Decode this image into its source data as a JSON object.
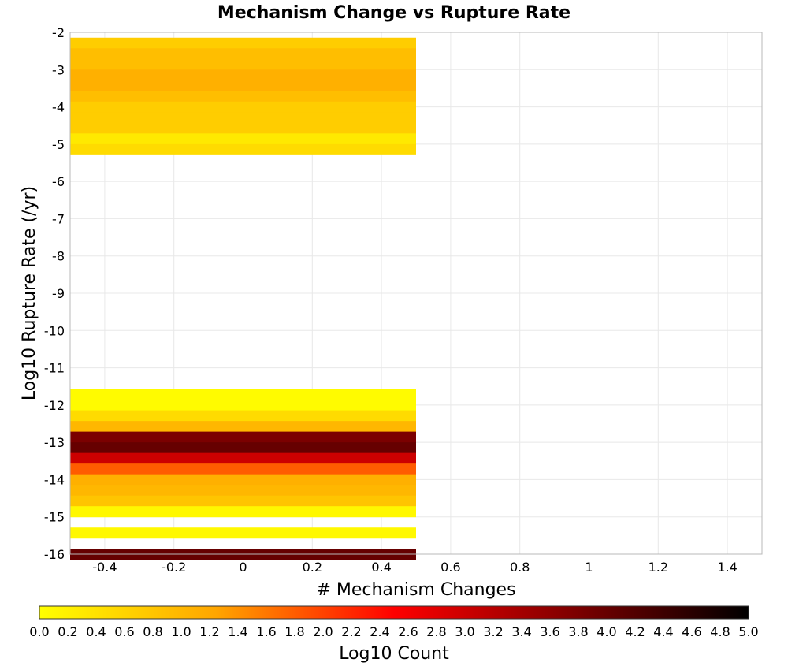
{
  "chart_data": {
    "type": "heatmap",
    "title": "Mechanism Change vs Rupture Rate",
    "xlabel": "# Mechanism Changes",
    "ylabel": "Log10 Rupture Rate (/yr)",
    "xlim": [
      -0.5,
      1.5
    ],
    "ylim": [
      -16,
      -2
    ],
    "x_ticks": [
      "-0.4",
      "-0.2",
      "0",
      "0.2",
      "0.4",
      "0.6",
      "0.8",
      "1",
      "1.2",
      "1.4"
    ],
    "y_ticks": [
      "-2",
      "-3",
      "-4",
      "-5",
      "-6",
      "-7",
      "-8",
      "-9",
      "-10",
      "-11",
      "-12",
      "-13",
      "-14",
      "-15",
      "-16"
    ],
    "grid": true,
    "cell_x_range": [
      -0.5,
      0.5
    ],
    "cell_height": 0.2857,
    "cells": [
      {
        "y_top": -2.143,
        "value": 0.7
      },
      {
        "y_top": -2.429,
        "value": 0.9
      },
      {
        "y_top": -2.714,
        "value": 0.9
      },
      {
        "y_top": -3.0,
        "value": 1.1
      },
      {
        "y_top": -3.286,
        "value": 1.1
      },
      {
        "y_top": -3.571,
        "value": 0.9
      },
      {
        "y_top": -3.857,
        "value": 0.7
      },
      {
        "y_top": -4.143,
        "value": 0.7
      },
      {
        "y_top": -4.429,
        "value": 0.7
      },
      {
        "y_top": -4.714,
        "value": 0.3
      },
      {
        "y_top": -5.0,
        "value": 0.5
      },
      {
        "y_top": -11.571,
        "value": 0.05
      },
      {
        "y_top": -11.857,
        "value": 0.05
      },
      {
        "y_top": -12.143,
        "value": 0.5
      },
      {
        "y_top": -12.429,
        "value": 1.0
      },
      {
        "y_top": -12.714,
        "value": 3.8
      },
      {
        "y_top": -13.0,
        "value": 4.0
      },
      {
        "y_top": -13.286,
        "value": 3.0
      },
      {
        "y_top": -13.571,
        "value": 1.8
      },
      {
        "y_top": -13.857,
        "value": 1.1
      },
      {
        "y_top": -14.143,
        "value": 1.0
      },
      {
        "y_top": -14.429,
        "value": 0.8
      },
      {
        "y_top": -14.714,
        "value": 0.1
      },
      {
        "y_top": -15.286,
        "value": 0.1
      },
      {
        "y_top": -15.857,
        "value": 4.0
      }
    ],
    "colorbar": {
      "label": "Log10 Count",
      "range": [
        0,
        5
      ],
      "ticks": [
        "0.0",
        "0.2",
        "0.4",
        "0.6",
        "0.8",
        "1.0",
        "1.2",
        "1.4",
        "1.6",
        "1.8",
        "2.0",
        "2.2",
        "2.4",
        "2.6",
        "2.8",
        "3.0",
        "3.2",
        "3.4",
        "3.6",
        "3.8",
        "4.0",
        "4.2",
        "4.4",
        "4.6",
        "4.8",
        "5.0"
      ],
      "colors": [
        "#ffff00",
        "#ffa500",
        "#ff0000",
        "#800000",
        "#000000"
      ]
    }
  }
}
